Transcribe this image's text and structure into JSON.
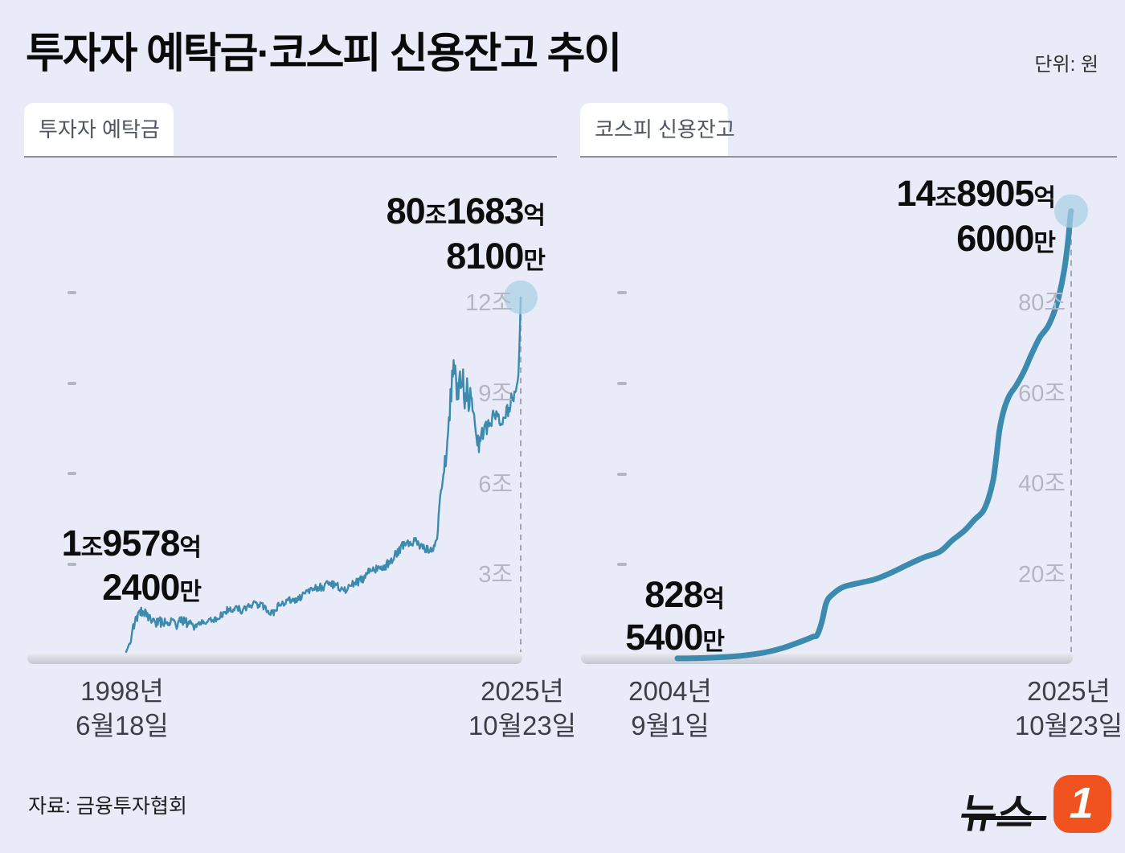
{
  "header": {
    "title": "투자자 예탁금·코스피 신용잔고 추이",
    "unit": "단위: 원"
  },
  "footer": {
    "source": "자료: 금융투자협회",
    "logo_text": "뉴스",
    "logo_badge": "1"
  },
  "colors": {
    "background": "#e9ecf8",
    "line": "#3c8aae",
    "marker": "#a9cee4",
    "axis_bar_light": "#edeff5",
    "axis_bar_dark": "#c3c7d1",
    "guide": "#a2a7b2",
    "tick_text": "#b3b7c3",
    "date_text": "#3c3f45",
    "annotation_text": "#0d0d0d",
    "tab_bg": "#ffffff",
    "tab_text": "#4e545f",
    "divider": "#8e93a0",
    "logo_orange": "#f0531f",
    "logo_black": "#141414"
  },
  "chart_data": [
    {
      "key": "deposit",
      "type": "line",
      "title": "투자자 예탁금",
      "yticks": [
        "20조",
        "40조",
        "60조",
        "80조"
      ],
      "ytick_values": [
        20,
        40,
        60,
        80
      ],
      "ylim": [
        0,
        86
      ],
      "y_unit": "조 원",
      "x_start_label": [
        "1998년",
        "6월18일"
      ],
      "x_end_label": [
        "2025년",
        "10월23일"
      ],
      "start_annotation": {
        "line1": [
          "1",
          "조",
          "9578",
          "억"
        ],
        "line2": [
          "2400",
          "만"
        ]
      },
      "end_annotation": {
        "line1": [
          "80",
          "조",
          "1683",
          "억"
        ],
        "line2": [
          "8100",
          "만"
        ]
      },
      "start_value_trillion": 1.96,
      "end_value_trillion": 80.17,
      "trend": [
        [
          0,
          1.96
        ],
        [
          0.009,
          3.5
        ],
        [
          0.02,
          8
        ],
        [
          0.038,
          11.5
        ],
        [
          0.056,
          11
        ],
        [
          0.075,
          10
        ],
        [
          0.111,
          9
        ],
        [
          0.148,
          9.5
        ],
        [
          0.184,
          8.2
        ],
        [
          0.221,
          8.6
        ],
        [
          0.257,
          10.8
        ],
        [
          0.294,
          11.5
        ],
        [
          0.331,
          13.5
        ],
        [
          0.367,
          11
        ],
        [
          0.404,
          13
        ],
        [
          0.44,
          14
        ],
        [
          0.477,
          15.8
        ],
        [
          0.513,
          16.5
        ],
        [
          0.55,
          15.6
        ],
        [
          0.586,
          16.5
        ],
        [
          0.623,
          19.5
        ],
        [
          0.66,
          21
        ],
        [
          0.696,
          24
        ],
        [
          0.733,
          26
        ],
        [
          0.769,
          25.5
        ],
        [
          0.788,
          28
        ],
        [
          0.799,
          38
        ],
        [
          0.81,
          46
        ],
        [
          0.818,
          55
        ],
        [
          0.824,
          63
        ],
        [
          0.828,
          69
        ],
        [
          0.834,
          66
        ],
        [
          0.842,
          64
        ],
        [
          0.853,
          66
        ],
        [
          0.861,
          62
        ],
        [
          0.872,
          58
        ],
        [
          0.883,
          53
        ],
        [
          0.897,
          49
        ],
        [
          0.916,
          50.5
        ],
        [
          0.934,
          54
        ],
        [
          0.952,
          53
        ],
        [
          0.971,
          55
        ],
        [
          0.984,
          58
        ],
        [
          0.99,
          60
        ],
        [
          0.9945,
          63
        ],
        [
          0.9975,
          71
        ],
        [
          1,
          80.17
        ]
      ],
      "noise": [
        [
          0,
          0.25
        ],
        [
          0.01,
          1
        ],
        [
          0.02,
          1.8
        ],
        [
          0.06,
          2.1
        ],
        [
          0.15,
          1.6
        ],
        [
          0.3,
          1.3
        ],
        [
          0.45,
          1.3
        ],
        [
          0.6,
          1.5
        ],
        [
          0.75,
          1.6
        ],
        [
          0.79,
          2
        ],
        [
          0.815,
          4
        ],
        [
          0.828,
          7.5
        ],
        [
          0.845,
          7
        ],
        [
          0.865,
          6
        ],
        [
          0.885,
          4.5
        ],
        [
          0.9,
          3
        ],
        [
          0.94,
          3
        ],
        [
          0.97,
          2.4
        ],
        [
          0.984,
          1.5
        ],
        [
          0.99,
          0.8
        ],
        [
          1,
          0.12
        ]
      ]
    },
    {
      "key": "credit",
      "type": "line",
      "title": "코스피 신용잔고",
      "yticks": [
        "3조",
        "6조",
        "9조",
        "12조"
      ],
      "ytick_values": [
        3,
        6,
        9,
        12
      ],
      "ylim": [
        0,
        15.5
      ],
      "y_unit": "조 원",
      "x_start_label": [
        "2004년",
        "9월1일"
      ],
      "x_end_label": [
        "2025년",
        "10월23일"
      ],
      "start_annotation": {
        "line1": [
          "828",
          "억"
        ],
        "line2": [
          "5400",
          "만"
        ]
      },
      "end_annotation": {
        "line1": [
          "14",
          "조",
          "8905",
          "억"
        ],
        "line2": [
          "6000",
          "만"
        ]
      },
      "start_value_trillion": 0.083,
      "end_value_trillion": 14.89,
      "points": [
        [
          0,
          0.083
        ],
        [
          0.076,
          0.1
        ],
        [
          0.147,
          0.15
        ],
        [
          0.218,
          0.27
        ],
        [
          0.269,
          0.43
        ],
        [
          0.32,
          0.67
        ],
        [
          0.345,
          0.8
        ],
        [
          0.355,
          0.86
        ],
        [
          0.367,
          1.3
        ],
        [
          0.378,
          1.92
        ],
        [
          0.392,
          2.18
        ],
        [
          0.422,
          2.45
        ],
        [
          0.473,
          2.61
        ],
        [
          0.504,
          2.71
        ],
        [
          0.545,
          2.93
        ],
        [
          0.586,
          3.19
        ],
        [
          0.627,
          3.43
        ],
        [
          0.667,
          3.62
        ],
        [
          0.698,
          3.99
        ],
        [
          0.729,
          4.31
        ],
        [
          0.755,
          4.68
        ],
        [
          0.776,
          4.95
        ],
        [
          0.79,
          5.38
        ],
        [
          0.802,
          5.99
        ],
        [
          0.81,
          6.76
        ],
        [
          0.818,
          7.64
        ],
        [
          0.829,
          8.3
        ],
        [
          0.843,
          8.78
        ],
        [
          0.861,
          9.13
        ],
        [
          0.88,
          9.58
        ],
        [
          0.9,
          10.17
        ],
        [
          0.92,
          10.7
        ],
        [
          0.941,
          11.07
        ],
        [
          0.957,
          11.55
        ],
        [
          0.969,
          12.08
        ],
        [
          0.982,
          12.91
        ],
        [
          0.992,
          13.89
        ],
        [
          0.998,
          14.74
        ],
        [
          1,
          14.89
        ]
      ]
    }
  ]
}
